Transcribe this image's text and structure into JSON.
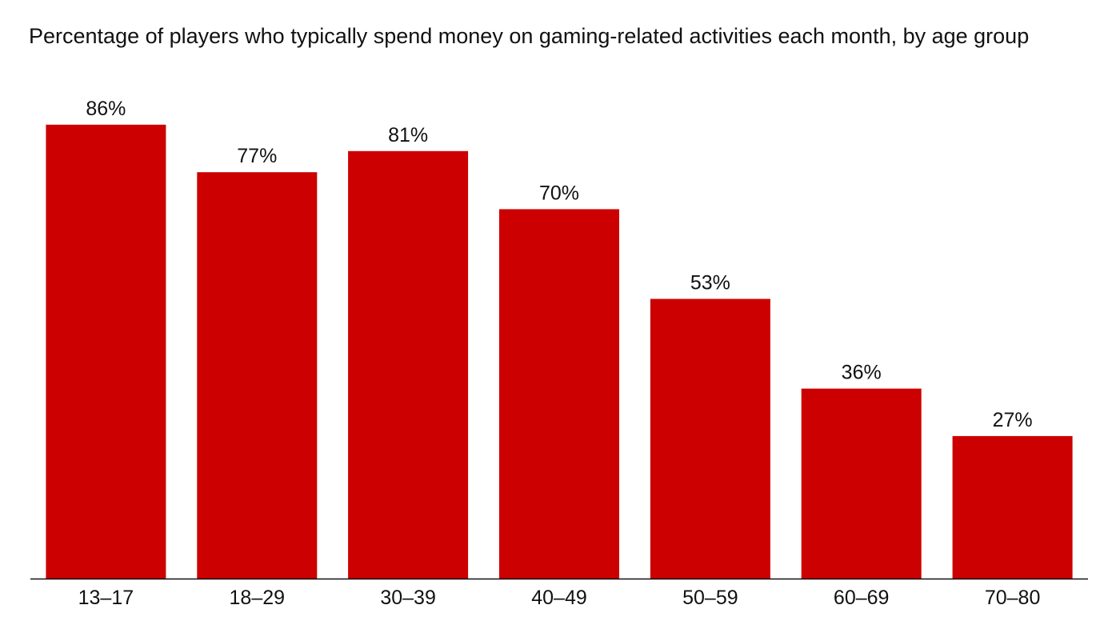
{
  "chart_data": {
    "type": "bar",
    "title": "Percentage of players who typically spend money on gaming-related activities each month, by age group",
    "xlabel": "",
    "ylabel": "",
    "categories": [
      "13–17",
      "18–29",
      "30–39",
      "40–49",
      "50–59",
      "60–69",
      "70–80"
    ],
    "values": [
      86,
      77,
      81,
      70,
      53,
      36,
      27
    ],
    "value_labels": [
      "86%",
      "77%",
      "81%",
      "70%",
      "53%",
      "36%",
      "27%"
    ],
    "unit": "%",
    "ylim": [
      0,
      100
    ],
    "grid": false,
    "legend": "none",
    "colors": {
      "bar": "#cc0000",
      "axis": "#111111",
      "text": "#111111"
    }
  }
}
